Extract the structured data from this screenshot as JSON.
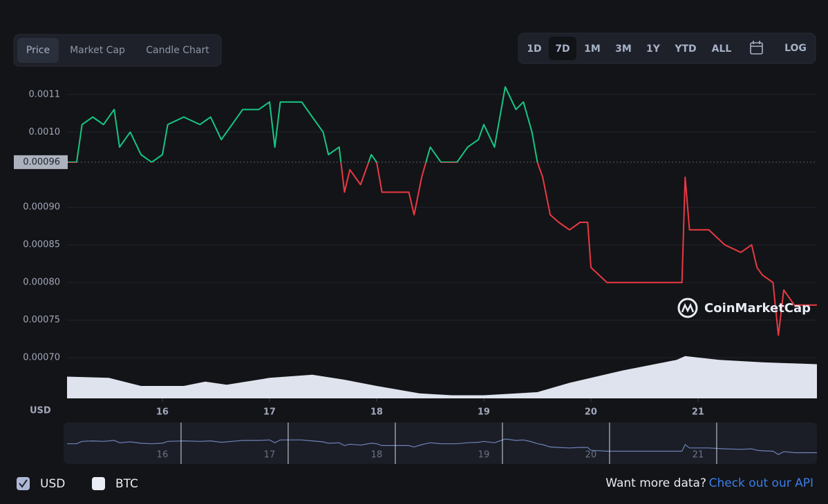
{
  "tabs": [
    "Price",
    "Market Cap",
    "Candle Chart"
  ],
  "ranges": [
    "1D",
    "7D",
    "1M",
    "3M",
    "1Y",
    "YTD",
    "ALL",
    "LOG"
  ],
  "watermark": "CoinMarketCap",
  "footer": {
    "currency_options": [
      "USD",
      "BTC"
    ],
    "prompt": "Want more data?",
    "link": "Check out our API"
  },
  "chart_data": {
    "type": "line",
    "y_axis_label": "USD",
    "baseline": 0.00096,
    "up_color": "#16c784",
    "down_color": "#ea3943",
    "grid": true,
    "xlim": [
      15.11,
      22.11
    ],
    "xticks": [
      16,
      17,
      18,
      19,
      20,
      21
    ],
    "ylim": [
      0.000646,
      0.00107
    ],
    "yticks": [
      {
        "value": 0.00105,
        "label": "0.0011"
      },
      {
        "value": 0.001,
        "label": "0.0010"
      },
      {
        "value": 0.0009,
        "label": "0.00090"
      },
      0.00085,
      {
        "value": 0.0008,
        "label": "0.00080"
      },
      0.00075,
      {
        "value": 0.0007,
        "label": "0.00070"
      }
    ],
    "x": [
      15.11,
      15.2,
      15.25,
      15.35,
      15.45,
      15.55,
      15.6,
      15.7,
      15.8,
      15.9,
      16.0,
      16.05,
      16.2,
      16.35,
      16.45,
      16.55,
      16.65,
      16.75,
      16.9,
      17.0,
      17.05,
      17.1,
      17.3,
      17.4,
      17.5,
      17.55,
      17.65,
      17.7,
      17.75,
      17.85,
      17.95,
      18.0,
      18.05,
      18.2,
      18.3,
      18.35,
      18.42,
      18.5,
      18.6,
      18.75,
      18.85,
      18.95,
      19.0,
      19.1,
      19.2,
      19.3,
      19.37,
      19.45,
      19.5,
      19.55,
      19.62,
      19.7,
      19.8,
      19.9,
      19.97,
      20.0,
      20.15,
      20.3,
      20.5,
      20.7,
      20.85,
      20.88,
      20.92,
      21.1,
      21.25,
      21.4,
      21.5,
      21.55,
      21.6,
      21.7,
      21.75,
      21.8,
      21.9,
      22.0,
      22.11
    ],
    "values": [
      0.00096,
      0.00096,
      0.00101,
      0.00102,
      0.00101,
      0.00103,
      0.00098,
      0.001,
      0.00097,
      0.00096,
      0.00097,
      0.00101,
      0.00102,
      0.00101,
      0.00102,
      0.00099,
      0.00101,
      0.00103,
      0.00103,
      0.00104,
      0.00098,
      0.00104,
      0.00104,
      0.00102,
      0.001,
      0.00097,
      0.00098,
      0.00092,
      0.00095,
      0.00093,
      0.00097,
      0.00096,
      0.00092,
      0.00092,
      0.00092,
      0.00089,
      0.00094,
      0.00098,
      0.00096,
      0.00096,
      0.00098,
      0.00099,
      0.00101,
      0.00098,
      0.00106,
      0.00103,
      0.00104,
      0.001,
      0.00096,
      0.00094,
      0.00089,
      0.00088,
      0.00087,
      0.00088,
      0.00088,
      0.00082,
      0.0008,
      0.0008,
      0.0008,
      0.0008,
      0.0008,
      0.00094,
      0.00087,
      0.00087,
      0.00085,
      0.00084,
      0.00085,
      0.00082,
      0.00081,
      0.0008,
      0.00073,
      0.00079,
      0.00077,
      0.00077,
      0.00077
    ],
    "volume": {
      "color": "#dfe3ee",
      "ylim": [
        0,
        100
      ],
      "x": [
        15.11,
        15.5,
        15.8,
        16.2,
        16.4,
        16.6,
        17.0,
        17.4,
        17.7,
        18.0,
        18.4,
        18.7,
        19.0,
        19.5,
        19.8,
        20.3,
        20.8,
        20.88,
        21.2,
        21.6,
        22.11
      ],
      "values": [
        35,
        33,
        20,
        20,
        27,
        22,
        33,
        38,
        30,
        20,
        8,
        5,
        5,
        10,
        25,
        45,
        62,
        68,
        62,
        58,
        55
      ]
    }
  }
}
